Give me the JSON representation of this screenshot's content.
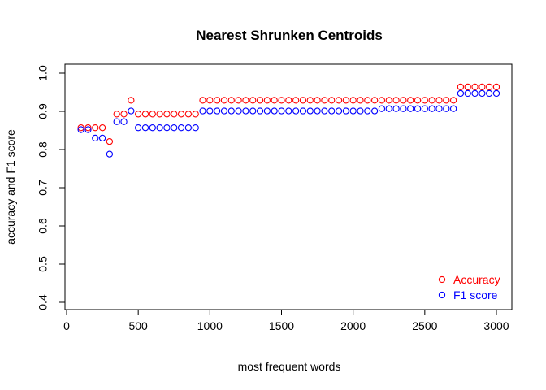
{
  "chart_data": {
    "type": "scatter",
    "title": "Nearest Shrunken Centroids",
    "xlabel": "most frequent words",
    "ylabel": "accuracy and F1 score",
    "xlim": [
      0,
      3000
    ],
    "ylim": [
      0.4,
      1.0
    ],
    "x_ticks": [
      0,
      500,
      1000,
      1500,
      2000,
      2500,
      3000
    ],
    "y_ticks": [
      0.4,
      0.5,
      0.6,
      0.7,
      0.8,
      0.9,
      1.0
    ],
    "x_tick_labels": [
      "0",
      "500",
      "1000",
      "1500",
      "2000",
      "2500",
      "3000"
    ],
    "y_tick_labels": [
      "0.4",
      "0.5",
      "0.6",
      "0.7",
      "0.8",
      "0.9",
      "1.0"
    ],
    "grid": false,
    "legend": {
      "position": "bottom-right",
      "entries": [
        "Accuracy",
        "F1 score"
      ]
    },
    "x": [
      100,
      150,
      200,
      250,
      300,
      350,
      400,
      450,
      500,
      550,
      600,
      650,
      700,
      750,
      800,
      850,
      900,
      950,
      1000,
      1050,
      1100,
      1150,
      1200,
      1250,
      1300,
      1350,
      1400,
      1450,
      1500,
      1550,
      1600,
      1650,
      1700,
      1750,
      1800,
      1850,
      1900,
      1950,
      2000,
      2050,
      2100,
      2150,
      2200,
      2250,
      2300,
      2350,
      2400,
      2450,
      2500,
      2550,
      2600,
      2650,
      2700,
      2750,
      2800,
      2850,
      2900,
      2950,
      3000
    ],
    "series": [
      {
        "name": "Accuracy",
        "color": "#ff0000",
        "values": [
          0.857,
          0.857,
          0.857,
          0.857,
          0.821,
          0.893,
          0.893,
          0.929,
          0.893,
          0.893,
          0.893,
          0.893,
          0.893,
          0.893,
          0.893,
          0.893,
          0.893,
          0.929,
          0.929,
          0.929,
          0.929,
          0.929,
          0.929,
          0.929,
          0.929,
          0.929,
          0.929,
          0.929,
          0.929,
          0.929,
          0.929,
          0.929,
          0.929,
          0.929,
          0.929,
          0.929,
          0.929,
          0.929,
          0.929,
          0.929,
          0.929,
          0.929,
          0.929,
          0.929,
          0.929,
          0.929,
          0.929,
          0.929,
          0.929,
          0.929,
          0.929,
          0.929,
          0.929,
          0.964,
          0.964,
          0.964,
          0.964,
          0.964,
          0.964
        ]
      },
      {
        "name": "F1 score",
        "color": "#0000ff",
        "values": [
          0.852,
          0.852,
          0.83,
          0.83,
          0.788,
          0.873,
          0.873,
          0.901,
          0.857,
          0.857,
          0.857,
          0.857,
          0.857,
          0.857,
          0.857,
          0.857,
          0.857,
          0.901,
          0.901,
          0.901,
          0.901,
          0.901,
          0.901,
          0.901,
          0.901,
          0.901,
          0.901,
          0.901,
          0.901,
          0.901,
          0.901,
          0.901,
          0.901,
          0.901,
          0.901,
          0.901,
          0.901,
          0.901,
          0.901,
          0.901,
          0.901,
          0.901,
          0.907,
          0.907,
          0.907,
          0.907,
          0.907,
          0.907,
          0.907,
          0.907,
          0.907,
          0.907,
          0.907,
          0.947,
          0.947,
          0.947,
          0.947,
          0.947,
          0.947
        ]
      }
    ]
  }
}
